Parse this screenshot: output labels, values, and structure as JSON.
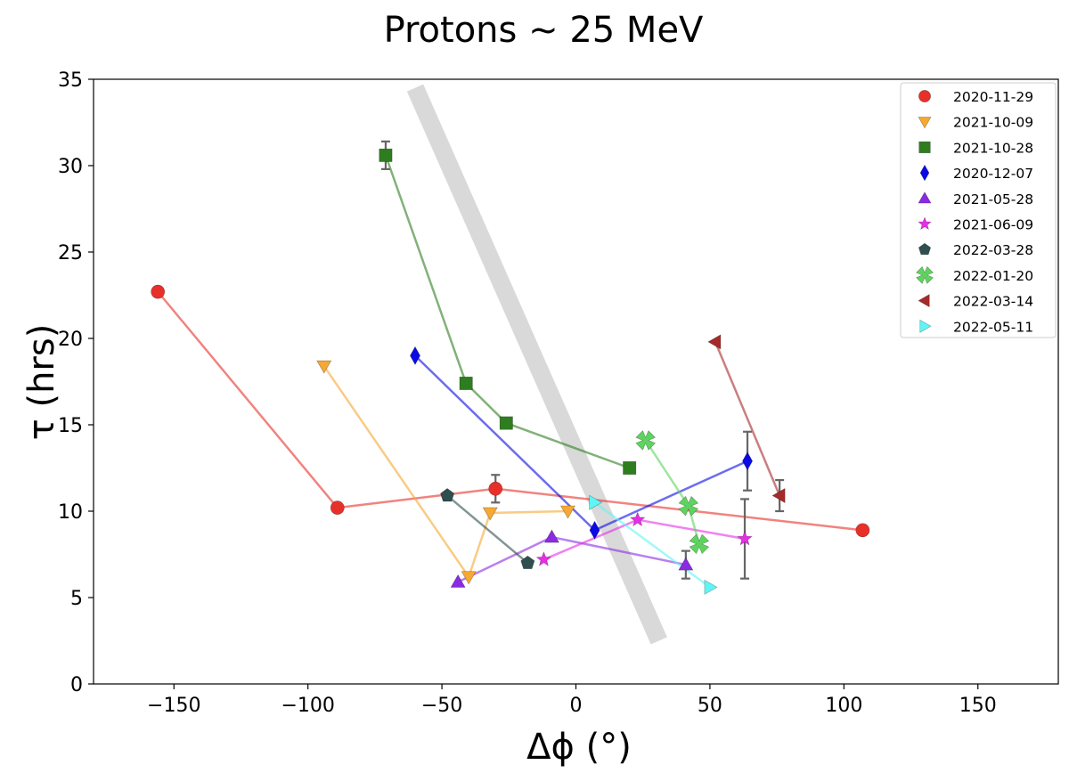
{
  "chart_data": {
    "type": "scatter",
    "title": "Protons ~ 25 MeV",
    "xlabel": "Δϕ (°)",
    "ylabel": "τ (hrs)",
    "xlim": [
      -180,
      180
    ],
    "ylim": [
      0,
      35
    ],
    "x_ticks": [
      -150,
      -100,
      -50,
      0,
      50,
      100,
      150
    ],
    "y_ticks": [
      0,
      5,
      10,
      15,
      20,
      25,
      30,
      35
    ],
    "legend_position": "top-right",
    "trend_band": {
      "color": "#d9d9d9",
      "from": [
        -60,
        34.5
      ],
      "to": [
        31,
        2.5
      ]
    },
    "series": [
      {
        "name": "2020-11-29",
        "marker": "circle",
        "color": "#e8302a",
        "points": [
          [
            -156,
            22.7
          ],
          [
            -89,
            10.2
          ],
          [
            -30,
            11.3
          ],
          [
            107,
            8.9
          ]
        ],
        "errors": [
          0,
          0,
          0.8,
          0
        ]
      },
      {
        "name": "2021-10-09",
        "marker": "triangle-down",
        "color": "#f5a833",
        "points": [
          [
            -94,
            18.4
          ],
          [
            -40,
            6.2
          ],
          [
            -32,
            9.9
          ],
          [
            -3,
            10.0
          ]
        ],
        "errors": [
          0,
          0,
          0,
          0
        ]
      },
      {
        "name": "2021-10-28",
        "marker": "square",
        "color": "#2e7d1f",
        "points": [
          [
            -71,
            30.6
          ],
          [
            -41,
            17.4
          ],
          [
            -26,
            15.1
          ],
          [
            20,
            12.5
          ]
        ],
        "errors": [
          0.8,
          0,
          0,
          0
        ]
      },
      {
        "name": "2020-12-07",
        "marker": "diamond",
        "color": "#0a0ae6",
        "points": [
          [
            -60,
            19.0
          ],
          [
            7,
            8.9
          ],
          [
            64,
            12.9
          ]
        ],
        "errors": [
          0,
          0,
          1.7
        ]
      },
      {
        "name": "2021-05-28",
        "marker": "triangle-up",
        "color": "#8a2be2",
        "points": [
          [
            -44,
            5.9
          ],
          [
            -9,
            8.5
          ],
          [
            41,
            6.9
          ]
        ],
        "errors": [
          0,
          0,
          0.8
        ]
      },
      {
        "name": "2021-06-09",
        "marker": "star",
        "color": "#e62ee6",
        "points": [
          [
            -12,
            7.2
          ],
          [
            23,
            9.5
          ],
          [
            63,
            8.4
          ]
        ],
        "errors": [
          0,
          0,
          2.3
        ]
      },
      {
        "name": "2022-03-28",
        "marker": "pentagon",
        "color": "#2f4f4f",
        "points": [
          [
            -48,
            10.9
          ],
          [
            -18,
            7.0
          ]
        ],
        "errors": [
          0,
          0
        ]
      },
      {
        "name": "2022-01-20",
        "marker": "x",
        "color": "#5fd35f",
        "points": [
          [
            26,
            14.1
          ],
          [
            42,
            10.3
          ],
          [
            46,
            8.1
          ]
        ],
        "errors": [
          0,
          0,
          0
        ]
      },
      {
        "name": "2022-03-14",
        "marker": "triangle-left",
        "color": "#a52a2a",
        "points": [
          [
            52,
            19.8
          ],
          [
            76,
            10.9
          ]
        ],
        "errors": [
          0,
          0.9
        ]
      },
      {
        "name": "2022-05-11",
        "marker": "triangle-right",
        "color": "#5ff5f5",
        "points": [
          [
            7,
            10.5
          ],
          [
            50,
            5.6
          ]
        ],
        "errors": [
          0,
          0
        ]
      }
    ]
  }
}
